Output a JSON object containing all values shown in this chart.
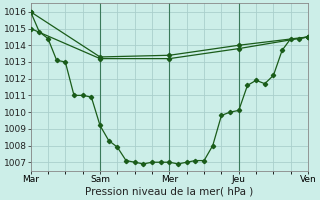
{
  "xlabel": "Pression niveau de la mer( hPa )",
  "background_color": "#cceee8",
  "grid_color": "#aacfcc",
  "line_color": "#1a5c1a",
  "marker_color": "#1a5c1a",
  "ylim": [
    1006.5,
    1016.5
  ],
  "xlim": [
    0,
    96
  ],
  "series": [
    {
      "x": [
        0,
        3,
        6,
        9,
        12,
        15,
        18,
        21,
        24,
        27,
        30,
        33,
        36,
        39,
        42,
        45,
        48,
        51,
        54,
        57,
        60,
        63,
        66,
        69,
        72,
        75,
        78,
        81,
        84,
        87,
        90,
        93,
        96
      ],
      "y": [
        1016.0,
        1014.8,
        1014.4,
        1013.1,
        1013.0,
        1011.0,
        1011.0,
        1010.9,
        1009.2,
        1008.3,
        1007.9,
        1007.1,
        1007.0,
        1006.9,
        1007.0,
        1007.0,
        1007.0,
        1006.9,
        1007.0,
        1007.1,
        1007.1,
        1008.0,
        1009.8,
        1010.0,
        1010.1,
        1011.6,
        1011.9,
        1011.7,
        1012.2,
        1013.7,
        1014.4,
        1014.4,
        1014.5
      ]
    },
    {
      "x": [
        0,
        24,
        48,
        72,
        96
      ],
      "y": [
        1016.0,
        1013.3,
        1013.4,
        1014.0,
        1014.5
      ]
    },
    {
      "x": [
        0,
        24,
        48,
        72,
        96
      ],
      "y": [
        1015.0,
        1013.2,
        1013.2,
        1013.8,
        1014.5
      ]
    }
  ],
  "yticks": [
    1007,
    1008,
    1009,
    1010,
    1011,
    1012,
    1013,
    1014,
    1015,
    1016
  ],
  "vlines_x": [
    24,
    48,
    72
  ],
  "xtick_pos": [
    0,
    24,
    48,
    72,
    96
  ],
  "xtick_labels": [
    "Mar",
    "Sam",
    "Mer",
    "Jeu",
    "Ven"
  ],
  "tick_fontsize": 6.5,
  "xlabel_fontsize": 7.5
}
